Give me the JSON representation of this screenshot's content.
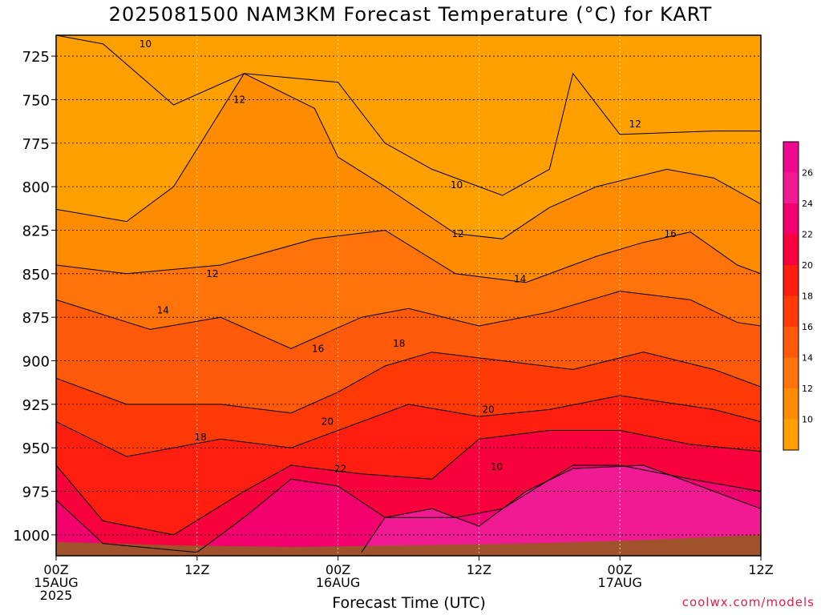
{
  "title": "2025081500 NAM3KM Forecast Temperature (°C) for KART",
  "xlabel": "Forecast Time (UTC)",
  "credit": "coolwx.com/models",
  "chart_data": {
    "type": "heatmap",
    "title": "2025081500 NAM3KM Forecast Temperature (°C) for KART",
    "xlabel": "Forecast Time (UTC)",
    "ylabel": "",
    "x_ticks": [
      {
        "hour": 0,
        "label": [
          "00Z",
          "15AUG",
          "2025"
        ]
      },
      {
        "hour": 12,
        "label": [
          "12Z"
        ]
      },
      {
        "hour": 24,
        "label": [
          "00Z",
          "16AUG"
        ]
      },
      {
        "hour": 36,
        "label": [
          "12Z"
        ]
      },
      {
        "hour": 48,
        "label": [
          "00Z",
          "17AUG"
        ]
      },
      {
        "hour": 60,
        "label": [
          "12Z"
        ]
      }
    ],
    "xlim": [
      0,
      60
    ],
    "y_ticks": [
      725,
      750,
      775,
      800,
      825,
      850,
      875,
      900,
      925,
      950,
      975,
      1000
    ],
    "ylim": [
      713,
      1012
    ],
    "y_inverted": true,
    "grid": true,
    "colorbar": {
      "levels": [
        10,
        12,
        14,
        16,
        18,
        20,
        22,
        24,
        26
      ],
      "colors": [
        "#ff9f00",
        "#ff8c00",
        "#ff7308",
        "#ff5a0a",
        "#ff3a06",
        "#ff1e10",
        "#f7003c",
        "#f3006f",
        "#f01b92",
        "#ee0a8f"
      ]
    },
    "contour_labels": [
      {
        "value": "10",
        "x": 7.6,
        "y": 718
      },
      {
        "value": "10",
        "x": 34.1,
        "y": 799
      },
      {
        "value": "10",
        "x": 37.5,
        "y": 961
      },
      {
        "value": "12",
        "x": 15.6,
        "y": 750
      },
      {
        "value": "12",
        "x": 49.3,
        "y": 764
      },
      {
        "value": "12",
        "x": 34.2,
        "y": 827
      },
      {
        "value": "12",
        "x": 13.3,
        "y": 850
      },
      {
        "value": "14",
        "x": 9.1,
        "y": 871
      },
      {
        "value": "14",
        "x": 39.5,
        "y": 853
      },
      {
        "value": "16",
        "x": 52.3,
        "y": 827
      },
      {
        "value": "16",
        "x": 22.3,
        "y": 893
      },
      {
        "value": "18",
        "x": 29.2,
        "y": 890
      },
      {
        "value": "18",
        "x": 12.3,
        "y": 944
      },
      {
        "value": "20",
        "x": 23.1,
        "y": 935
      },
      {
        "value": "20",
        "x": 36.8,
        "y": 928
      },
      {
        "value": "22",
        "x": 24.2,
        "y": 962
      }
    ],
    "bands": [
      {
        "level": "<10",
        "color": "#ff9f00",
        "upper": [
          [
            0,
            713
          ],
          [
            60,
            713
          ]
        ],
        "lower": [
          [
            0,
            713
          ],
          [
            4,
            718
          ],
          [
            10,
            753
          ],
          [
            16,
            735
          ],
          [
            24,
            740
          ],
          [
            28,
            775
          ],
          [
            32,
            790
          ],
          [
            38,
            805
          ],
          [
            42,
            790
          ],
          [
            44,
            735
          ],
          [
            48,
            770
          ],
          [
            56,
            768
          ],
          [
            60,
            768
          ]
        ]
      },
      {
        "level": "10-12",
        "color": "#ff8c00",
        "upper": [
          [
            0,
            813
          ],
          [
            6,
            820
          ],
          [
            10,
            800
          ],
          [
            16,
            735
          ],
          [
            22,
            755
          ],
          [
            24,
            783
          ],
          [
            28,
            800
          ],
          [
            34,
            827
          ],
          [
            38,
            830
          ],
          [
            42,
            812
          ],
          [
            46,
            800
          ],
          [
            52,
            790
          ],
          [
            56,
            795
          ],
          [
            60,
            810
          ]
        ]
      },
      {
        "level": "12-14",
        "color": "#ff7308",
        "upper": [
          [
            0,
            845
          ],
          [
            6,
            850
          ],
          [
            14,
            845
          ],
          [
            22,
            830
          ],
          [
            28,
            825
          ],
          [
            34,
            850
          ],
          [
            40,
            855
          ],
          [
            46,
            840
          ],
          [
            50,
            832
          ],
          [
            54,
            826
          ],
          [
            58,
            845
          ],
          [
            60,
            850
          ]
        ]
      },
      {
        "level": "14-16",
        "color": "#ff5a0a",
        "upper": [
          [
            0,
            865
          ],
          [
            8,
            882
          ],
          [
            14,
            875
          ],
          [
            20,
            893
          ],
          [
            26,
            875
          ],
          [
            30,
            870
          ],
          [
            36,
            880
          ],
          [
            42,
            872
          ],
          [
            48,
            860
          ],
          [
            54,
            865
          ],
          [
            58,
            878
          ],
          [
            60,
            880
          ]
        ]
      },
      {
        "level": "16-18",
        "color": "#ff3a06",
        "upper": [
          [
            0,
            910
          ],
          [
            6,
            925
          ],
          [
            14,
            925
          ],
          [
            20,
            930
          ],
          [
            24,
            918
          ],
          [
            28,
            903
          ],
          [
            32,
            895
          ],
          [
            38,
            900
          ],
          [
            44,
            905
          ],
          [
            50,
            895
          ],
          [
            56,
            905
          ],
          [
            60,
            915
          ]
        ]
      },
      {
        "level": "18-20",
        "color": "#ff1e10",
        "upper": [
          [
            0,
            935
          ],
          [
            6,
            955
          ],
          [
            14,
            945
          ],
          [
            20,
            950
          ],
          [
            24,
            940
          ],
          [
            30,
            925
          ],
          [
            36,
            932
          ],
          [
            42,
            928
          ],
          [
            48,
            920
          ],
          [
            56,
            928
          ],
          [
            60,
            935
          ]
        ]
      },
      {
        "level": "20-22",
        "color": "#f7003c",
        "upper": [
          [
            0,
            960
          ],
          [
            4,
            992
          ],
          [
            10,
            1000
          ],
          [
            16,
            975
          ],
          [
            20,
            960
          ],
          [
            26,
            965
          ],
          [
            32,
            968
          ],
          [
            36,
            945
          ],
          [
            42,
            940
          ],
          [
            48,
            940
          ],
          [
            54,
            948
          ],
          [
            60,
            952
          ]
        ]
      },
      {
        "level": "22-24",
        "color": "#f3006f",
        "upper": [
          [
            0,
            980
          ],
          [
            4,
            1005
          ],
          [
            12,
            1010
          ],
          [
            16,
            990
          ],
          [
            20,
            968
          ],
          [
            24,
            972
          ],
          [
            28,
            990
          ],
          [
            34,
            990
          ],
          [
            38,
            985
          ],
          [
            44,
            960
          ],
          [
            48,
            960
          ],
          [
            54,
            968
          ],
          [
            60,
            975
          ]
        ]
      }
    ],
    "surface_color": "#a0522d"
  }
}
